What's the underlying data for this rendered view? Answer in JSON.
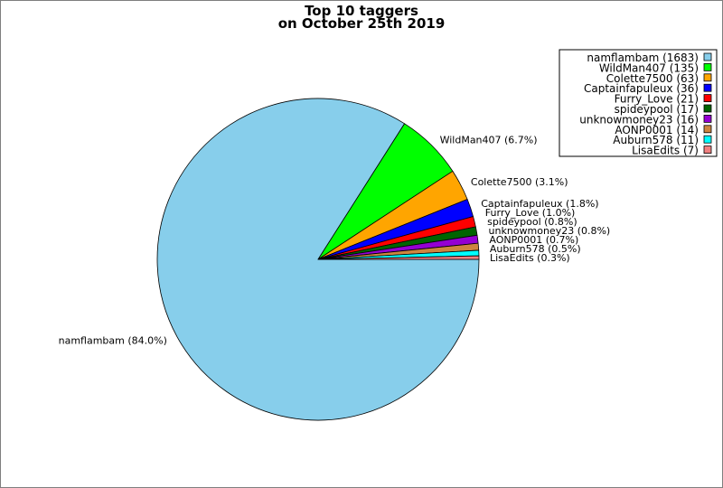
{
  "chart_data": {
    "type": "pie",
    "title": [
      "Top 10 taggers",
      "on October 25th 2019"
    ],
    "legend_position": "top-right",
    "slices": [
      {
        "name": "namflambam",
        "value": 1683,
        "percent_label": "84.0%",
        "legend_label": "namflambam (1683)",
        "color": "#87ceeb"
      },
      {
        "name": "WildMan407",
        "value": 135,
        "percent_label": "6.7%",
        "legend_label": "WildMan407 (135)",
        "color": "#00ff00"
      },
      {
        "name": "Colette7500",
        "value": 63,
        "percent_label": "3.1%",
        "legend_label": "Colette7500 (63)",
        "color": "#ffa500"
      },
      {
        "name": "Captainfapuleux",
        "value": 36,
        "percent_label": "1.8%",
        "legend_label": "Captainfapuleux (36)",
        "color": "#0000ff"
      },
      {
        "name": "Furry_Love",
        "value": 21,
        "percent_label": "1.0%",
        "legend_label": "Furry_Love (21)",
        "color": "#ff0000"
      },
      {
        "name": "spideypool",
        "value": 17,
        "percent_label": "0.8%",
        "legend_label": "spideypool (17)",
        "color": "#006400"
      },
      {
        "name": "unknowmoney23",
        "value": 16,
        "percent_label": "0.8%",
        "legend_label": "unknowmoney23 (16)",
        "color": "#9400d3"
      },
      {
        "name": "AONP0001 ",
        "value": 14,
        "percent_label": "0.7%",
        "legend_label": "AONP0001  (14)",
        "color": "#cd853f"
      },
      {
        "name": "Auburn578",
        "value": 11,
        "percent_label": "0.5%",
        "legend_label": "Auburn578 (11)",
        "color": "#00ffff"
      },
      {
        "name": "LisaEdits",
        "value": 7,
        "percent_label": "0.3%",
        "legend_label": "LisaEdits (7)",
        "color": "#f08080"
      }
    ]
  }
}
